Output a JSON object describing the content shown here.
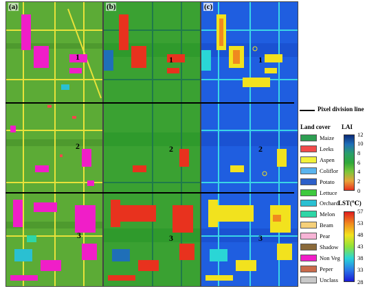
{
  "panels": [
    {
      "label": "(a)"
    },
    {
      "label": "(b)"
    },
    {
      "label": "(c)"
    }
  ],
  "zones": [
    "1",
    "2",
    "3"
  ],
  "division_line_legend": "Pixel division line",
  "land_cover": {
    "title": "Land cover",
    "items": [
      {
        "name": "Maize",
        "color": "#2e9e52"
      },
      {
        "name": "Leeks",
        "color": "#f04a4a"
      },
      {
        "name": "Aspen",
        "color": "#f2f23a"
      },
      {
        "name": "Coliflor",
        "color": "#5ab4ee"
      },
      {
        "name": "Potato",
        "color": "#2c5fc9"
      },
      {
        "name": "Lettuce",
        "color": "#3ec93e"
      },
      {
        "name": "Orchard",
        "color": "#2ac0d2"
      },
      {
        "name": "Melon",
        "color": "#2ed6a6"
      },
      {
        "name": "Beam",
        "color": "#f5d07a"
      },
      {
        "name": "Pear",
        "color": "#f7b4d6"
      },
      {
        "name": "Shadow",
        "color": "#8a6a3a"
      },
      {
        "name": "Non Veg",
        "color": "#f01ec8"
      },
      {
        "name": "Peper",
        "color": "#c96a4a"
      },
      {
        "name": "Unclass",
        "color": "#c8c8c8"
      }
    ]
  },
  "lai_colorbar": {
    "title": "LAI",
    "ticks": [
      "12",
      "10",
      "8",
      "6",
      "4",
      "2",
      "0"
    ],
    "colors": [
      "#0a2a78",
      "#1f6fb8",
      "#2a9e6a",
      "#2fa83a",
      "#7cc63a",
      "#e8a33a",
      "#e8321e"
    ]
  },
  "lst_colorbar": {
    "title": "LST(℃)",
    "ticks": [
      "57",
      "53",
      "48",
      "43",
      "38",
      "33",
      "28"
    ],
    "colors": [
      "#e01e1e",
      "#f08a1e",
      "#f2e21e",
      "#8ee23a",
      "#2ad6d6",
      "#2a7ae8",
      "#1a1ad6"
    ]
  }
}
